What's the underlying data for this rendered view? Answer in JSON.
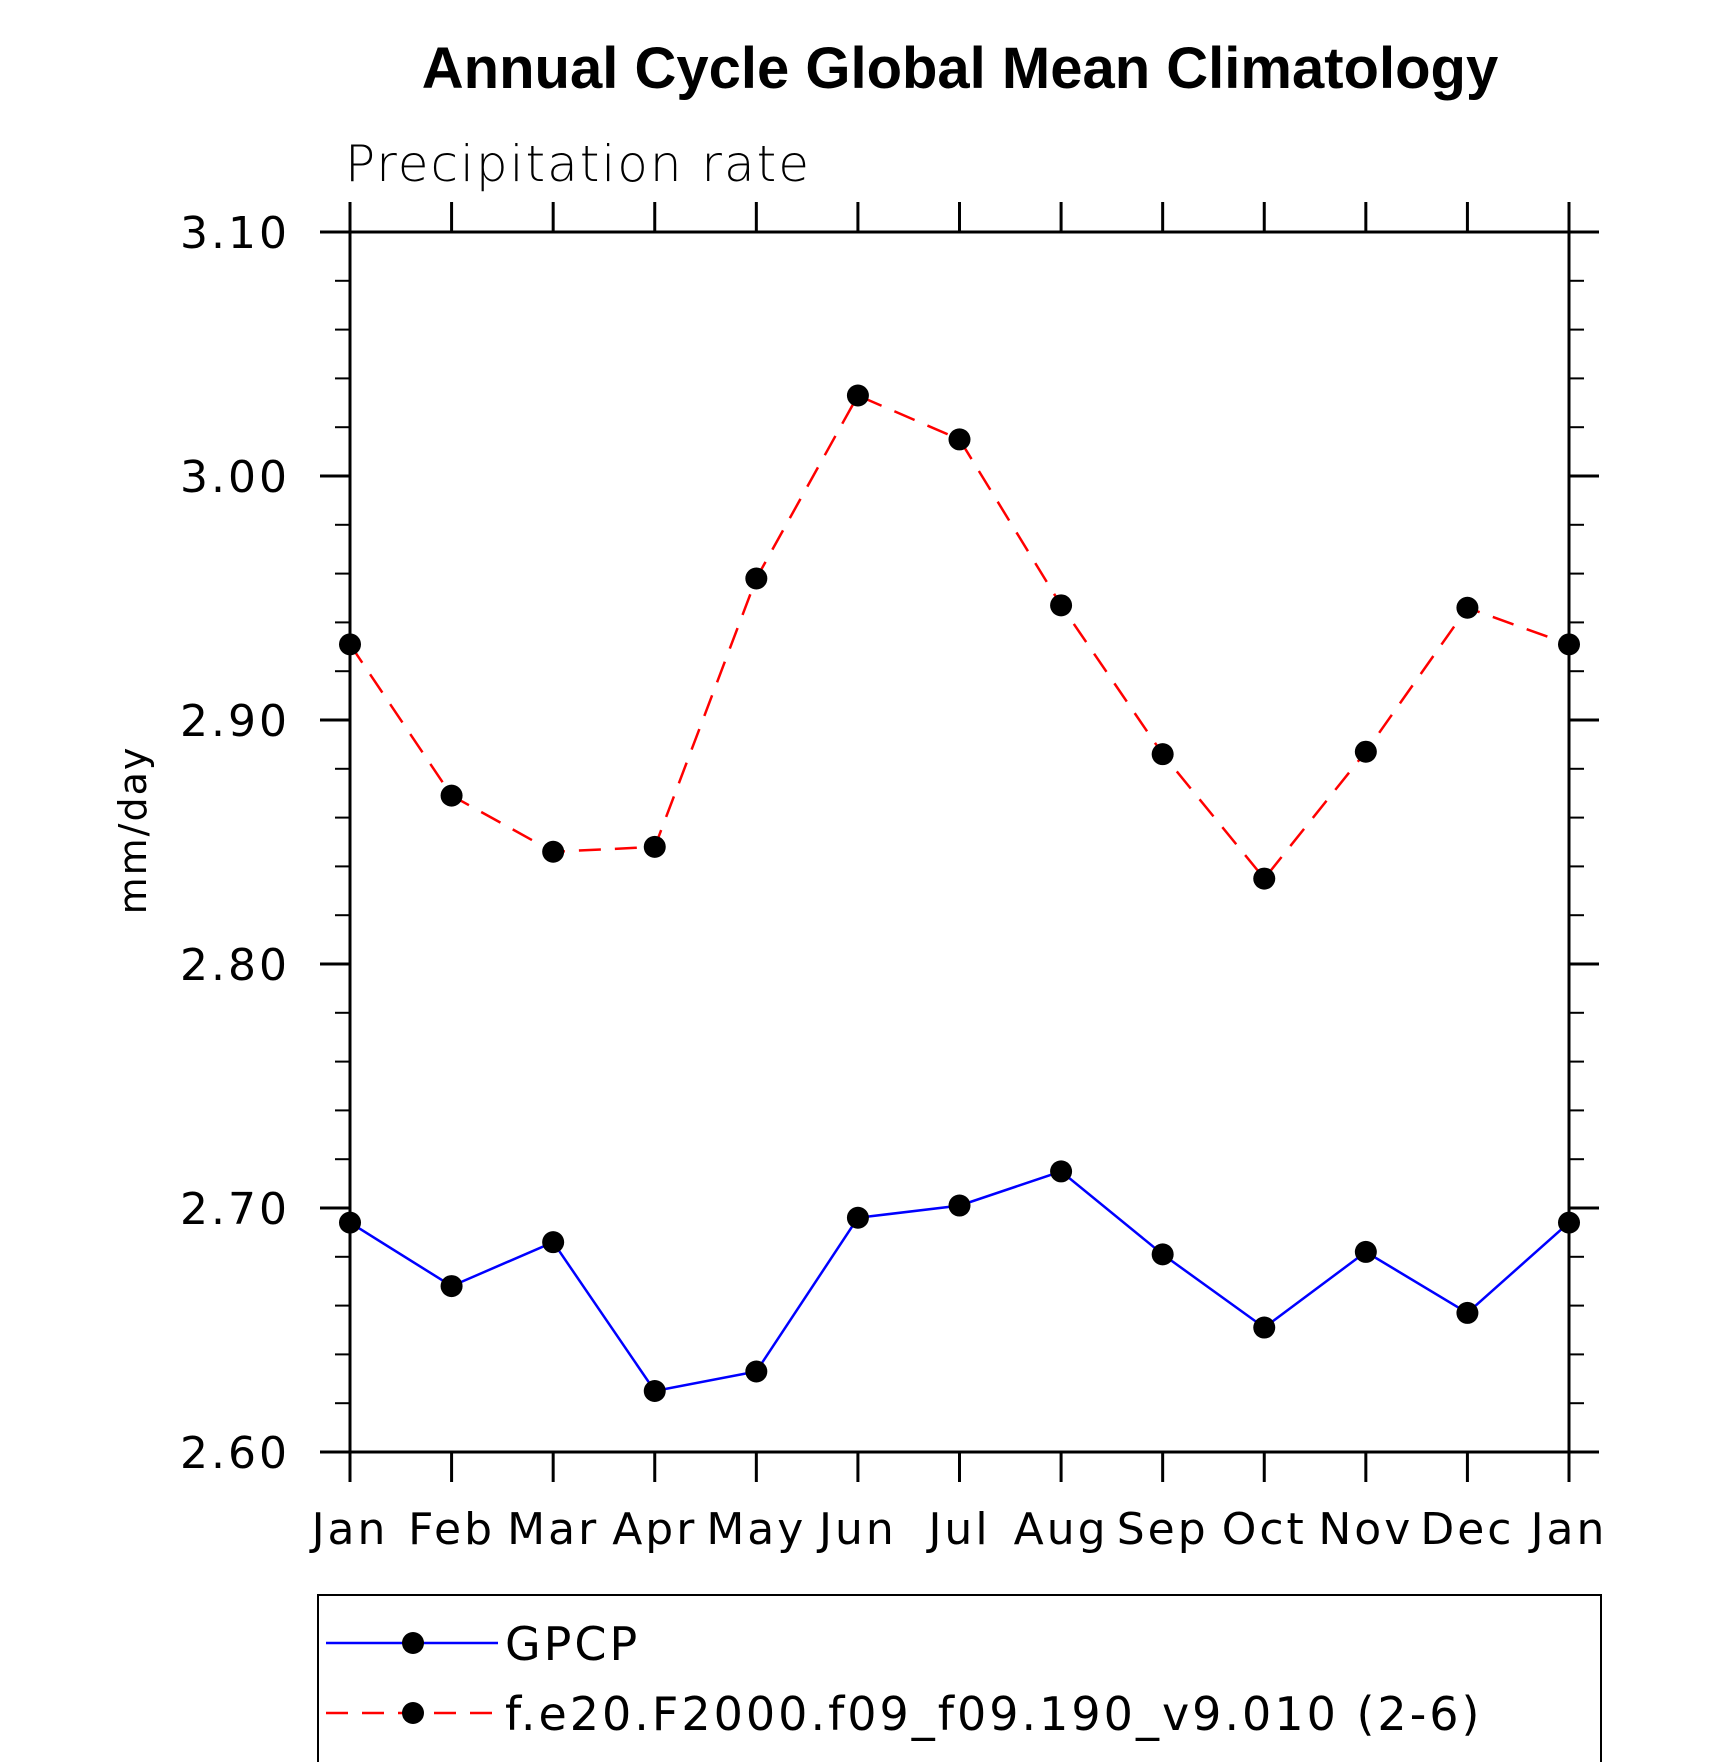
{
  "chart_data": {
    "type": "line",
    "title": "Annual Cycle Global Mean Climatology",
    "subtitle": "Precipitation rate",
    "ylabel": "mm/day",
    "xlabel": "",
    "categories": [
      "Jan",
      "Feb",
      "Mar",
      "Apr",
      "May",
      "Jun",
      "Jul",
      "Aug",
      "Sep",
      "Oct",
      "Nov",
      "Dec",
      "Jan"
    ],
    "ylim": [
      2.6,
      3.1
    ],
    "yticks": [
      "2.60",
      "2.70",
      "2.80",
      "2.90",
      "3.00",
      "3.10"
    ],
    "legend_position": "bottom",
    "grid": false,
    "series": [
      {
        "name": "GPCP",
        "color": "#0000ff",
        "style": "solid",
        "marker": "filled-circle",
        "values": [
          2.694,
          2.668,
          2.686,
          2.625,
          2.633,
          2.696,
          2.701,
          2.715,
          2.681,
          2.651,
          2.682,
          2.657,
          2.694
        ]
      },
      {
        "name": "f.e20.F2000.f09_f09.190_v9.010 (2-6)",
        "color": "#ff0000",
        "style": "dashed",
        "marker": "filled-circle",
        "values": [
          2.931,
          2.869,
          2.846,
          2.848,
          2.958,
          3.033,
          3.015,
          2.947,
          2.886,
          2.835,
          2.887,
          2.946,
          2.931
        ]
      }
    ]
  }
}
